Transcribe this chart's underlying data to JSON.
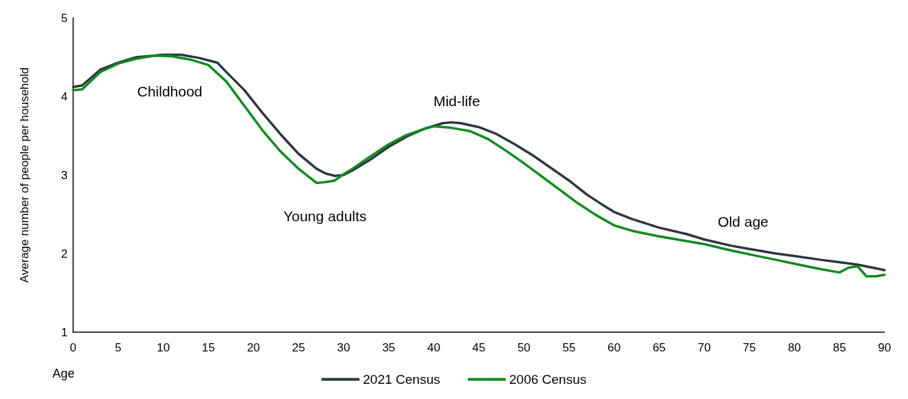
{
  "chart_data": {
    "type": "line",
    "xlabel": "Age",
    "ylabel": "Average number of people per household",
    "xlim": [
      0,
      90
    ],
    "xticks": [
      0,
      5,
      10,
      15,
      20,
      25,
      30,
      35,
      40,
      45,
      50,
      55,
      60,
      65,
      70,
      75,
      80,
      85,
      90
    ],
    "ylim": [
      1,
      5
    ],
    "yticks": [
      1,
      2,
      3,
      4,
      5
    ],
    "grid": false,
    "legend": "bottom",
    "marker": "none",
    "line_style": "solid",
    "series": [
      {
        "name": "2021 Census",
        "color": "#2d3640",
        "x": [
          0,
          1,
          3,
          5,
          7,
          10,
          12,
          14,
          16,
          17,
          19,
          21,
          23,
          25,
          27,
          28,
          29,
          30,
          31,
          33,
          35,
          37,
          39,
          41,
          42,
          43,
          45,
          47,
          49,
          51,
          53,
          55,
          57,
          59,
          60,
          62,
          65,
          68,
          70,
          73,
          75,
          78,
          80,
          83,
          85,
          87,
          90
        ],
        "values": [
          4.12,
          4.14,
          4.34,
          4.43,
          4.5,
          4.53,
          4.53,
          4.49,
          4.43,
          4.31,
          4.08,
          3.79,
          3.52,
          3.27,
          3.08,
          3.02,
          2.99,
          3.0,
          3.06,
          3.2,
          3.36,
          3.49,
          3.59,
          3.66,
          3.67,
          3.66,
          3.61,
          3.52,
          3.39,
          3.25,
          3.09,
          2.93,
          2.75,
          2.6,
          2.53,
          2.44,
          2.33,
          2.25,
          2.18,
          2.1,
          2.06,
          2.0,
          1.97,
          1.92,
          1.89,
          1.86,
          1.79
        ]
      },
      {
        "name": "2006 Census",
        "color": "#0f8a1f",
        "x": [
          0,
          1,
          3,
          5,
          7,
          9,
          11,
          13,
          15,
          17,
          19,
          21,
          23,
          25,
          27,
          28,
          29,
          30,
          31,
          33,
          35,
          37,
          39,
          40,
          42,
          44,
          46,
          48,
          50,
          52,
          54,
          56,
          58,
          60,
          62,
          65,
          68,
          70,
          73,
          75,
          78,
          80,
          83,
          85,
          86,
          87,
          88,
          89,
          90
        ],
        "values": [
          4.08,
          4.09,
          4.31,
          4.42,
          4.48,
          4.52,
          4.51,
          4.47,
          4.4,
          4.19,
          3.88,
          3.57,
          3.3,
          3.08,
          2.9,
          2.91,
          2.93,
          3.01,
          3.08,
          3.24,
          3.39,
          3.51,
          3.59,
          3.62,
          3.6,
          3.56,
          3.46,
          3.31,
          3.15,
          2.98,
          2.81,
          2.64,
          2.49,
          2.36,
          2.29,
          2.22,
          2.16,
          2.12,
          2.04,
          1.99,
          1.92,
          1.87,
          1.8,
          1.76,
          1.82,
          1.84,
          1.71,
          1.71,
          1.73
        ]
      }
    ],
    "annotations": [
      "Childhood",
      "Young adults",
      "Mid-life",
      "Old age"
    ]
  }
}
